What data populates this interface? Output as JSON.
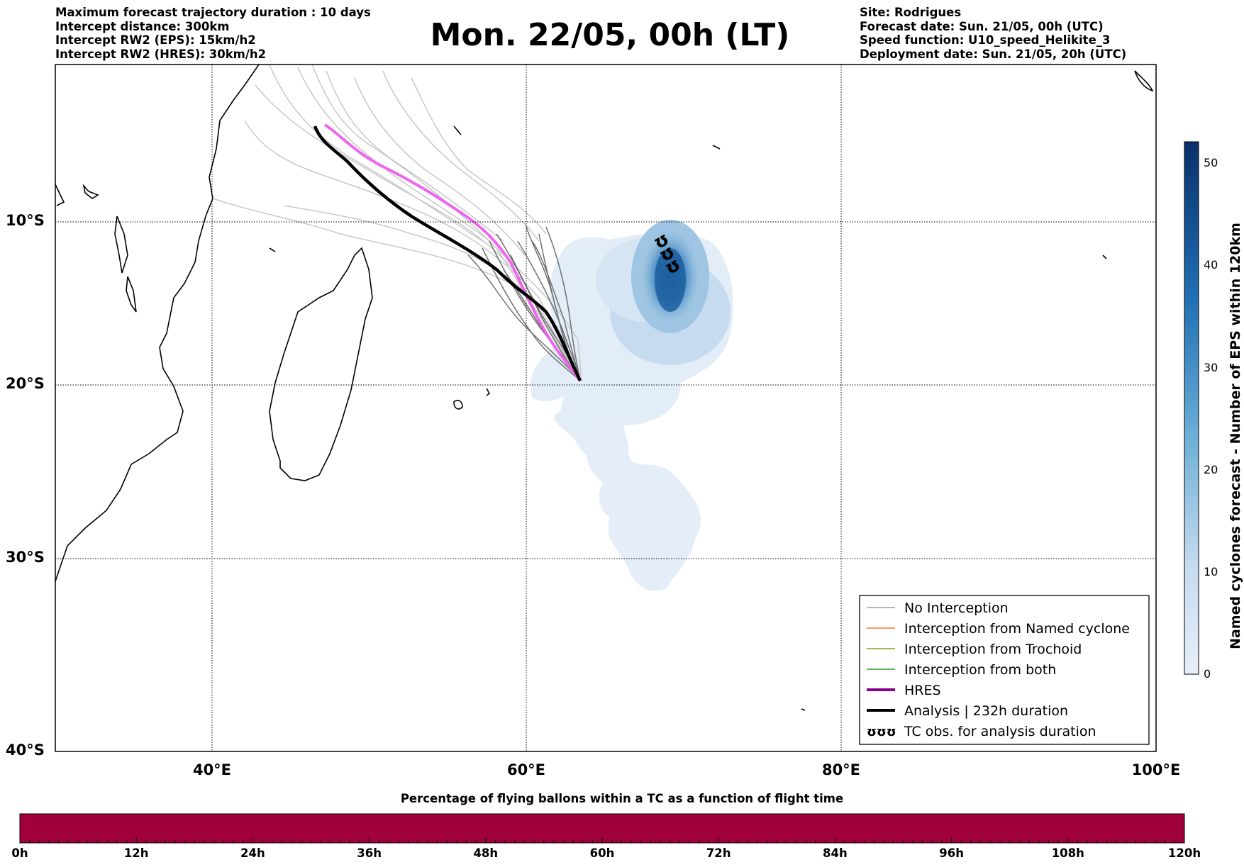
{
  "header_left": [
    "Maximum forecast trajectory duration : 10 days",
    "Intercept distance: 300km",
    "Intercept RW2 (EPS):  15km/h2",
    "Intercept RW2 (HRES): 30km/h2"
  ],
  "header_right": [
    "Site: Rodrigues",
    "Forecast date: Sun. 21/05, 00h (UTC)",
    "Speed function: U10_speed_Helikite_3",
    "Deployment date: Sun. 21/05, 20h (UTC)"
  ],
  "title": "Mon. 22/05, 00h (LT)",
  "map": {
    "lat_ticks": [
      "10°S",
      "20°S",
      "30°S",
      "40°S"
    ],
    "lon_ticks": [
      "40°E",
      "60°E",
      "80°E",
      "100°E"
    ],
    "extent": {
      "lon_min": 30,
      "lon_max": 100,
      "lat_min": -40,
      "lat_max": -1
    }
  },
  "legend": [
    {
      "label": "No Interception",
      "color": "#888888",
      "style": "thin"
    },
    {
      "label": "Interception from Named cyclone",
      "color": "#ff5500",
      "style": "thin"
    },
    {
      "label": "Interception from Trochoid",
      "color": "#808000",
      "style": "thin"
    },
    {
      "label": "Interception from both",
      "color": "#008000",
      "style": "thin"
    },
    {
      "label": "HRES",
      "color": "#8b008b",
      "style": "thick"
    },
    {
      "label": "Analysis | 232h duration",
      "color": "#000000",
      "style": "thick"
    },
    {
      "label": "TC obs. for analysis duration",
      "color": "#000000",
      "style": "symbol",
      "symbol": "ʊʊʊ"
    }
  ],
  "colorbar": {
    "label": "Named cyclones forecast - Number of EPS within 120km",
    "ticks": [
      "0",
      "10",
      "20",
      "30",
      "40",
      "50"
    ],
    "min": 0,
    "max": 52,
    "color_low": "#e6eef8",
    "color_high": "#08306b"
  },
  "bottom_bar": {
    "title": "Percentage of flying ballons within a TC as a function of flight time",
    "color": "#a0003c",
    "ticks": [
      "0h",
      "12h",
      "24h",
      "36h",
      "48h",
      "60h",
      "72h",
      "84h",
      "96h",
      "108h",
      "120h"
    ]
  },
  "tracks": {
    "hres_color": "#ee66ee",
    "analysis_color": "#000000",
    "eps_light_color": "#c8c8c8",
    "eps_dark_color": "#707070"
  }
}
